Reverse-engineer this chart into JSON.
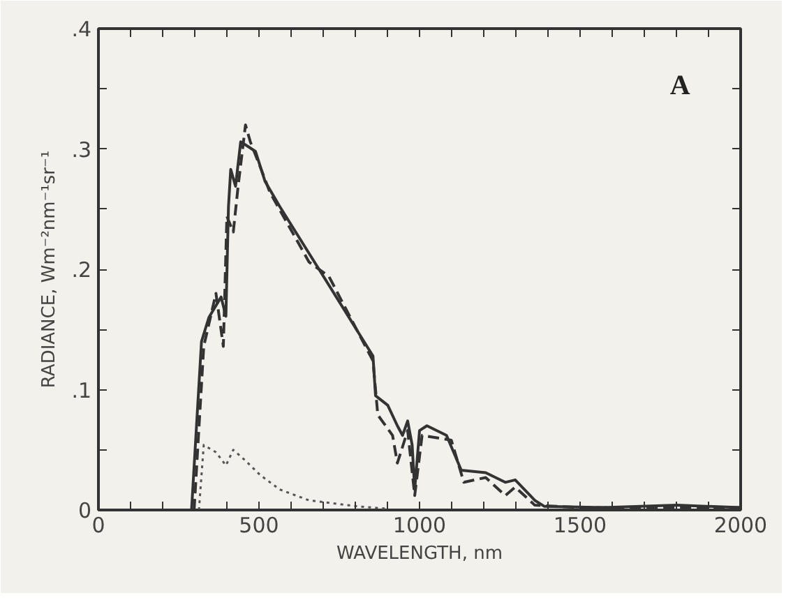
{
  "chart_data": {
    "type": "line",
    "xlabel": "WAVELENGTH, nm",
    "ylabel": "RADIANCE, Wm⁻²nm⁻¹sr⁻¹",
    "annotations": [
      "A"
    ],
    "xlim": [
      0,
      2000
    ],
    "ylim": [
      0,
      0.4
    ],
    "xticks": [
      0,
      {
        "value": 100,
        "label": null
      },
      {
        "value": 200,
        "label": null
      },
      {
        "value": 300,
        "label": null
      },
      {
        "value": 400,
        "label": null
      },
      500,
      {
        "value": 600,
        "label": null
      },
      {
        "value": 700,
        "label": null
      },
      {
        "value": 800,
        "label": null
      },
      {
        "value": 900,
        "label": null
      },
      1000,
      {
        "value": 1100,
        "label": null
      },
      {
        "value": 1200,
        "label": null
      },
      {
        "value": 1300,
        "label": null
      },
      {
        "value": 1400,
        "label": null
      },
      1500,
      {
        "value": 1600,
        "label": null
      },
      {
        "value": 1700,
        "label": null
      },
      {
        "value": 1800,
        "label": null
      },
      {
        "value": 1900,
        "label": null
      },
      2000
    ],
    "yticks": [
      0,
      {
        "value": 0.05,
        "label": null
      },
      {
        "value": 0.1,
        "label": ".1"
      },
      {
        "value": 0.15,
        "label": null
      },
      {
        "value": 0.2,
        "label": ".2"
      },
      {
        "value": 0.25,
        "label": null
      },
      {
        "value": 0.3,
        "label": ".3"
      },
      {
        "value": 0.35,
        "label": null
      },
      {
        "value": 0.4,
        "label": ".4"
      }
    ],
    "grid": false,
    "series": [
      {
        "color": "#333333",
        "line_style": "solid",
        "x": [
          290,
          321,
          344,
          382,
          397,
          405,
          412,
          427,
          443,
          466,
          489,
          519,
          565,
          687,
          855,
          863,
          901,
          931,
          947,
          963,
          977,
          985,
          1000,
          1023,
          1084,
          1130,
          1206,
          1267,
          1298,
          1359,
          1389,
          1573,
          1802,
          2000
        ],
        "values": [
          0,
          0.14,
          0.16,
          0.177,
          0.161,
          0.252,
          0.283,
          0.269,
          0.306,
          0.302,
          0.298,
          0.273,
          0.252,
          0.2,
          0.128,
          0.095,
          0.087,
          0.07,
          0.062,
          0.074,
          0.054,
          0.017,
          0.066,
          0.07,
          0.062,
          0.033,
          0.031,
          0.023,
          0.025,
          0.008,
          0.003,
          0.002,
          0.004,
          0.002
        ]
      },
      {
        "color": "#333333",
        "line_style": "dashed",
        "x": [
          298,
          328,
          366,
          389,
          400,
          420,
          435,
          458,
          473,
          504,
          534,
          656,
          718,
          855,
          870,
          916,
          931,
          963,
          985,
          1008,
          1099,
          1138,
          1206,
          1267,
          1298,
          1359,
          1500,
          2000
        ],
        "values": [
          0,
          0.136,
          0.18,
          0.136,
          0.244,
          0.231,
          0.269,
          0.32,
          0.306,
          0.285,
          0.264,
          0.206,
          0.194,
          0.124,
          0.079,
          0.062,
          0.039,
          0.066,
          0.012,
          0.062,
          0.058,
          0.023,
          0.027,
          0.012,
          0.019,
          0.004,
          0.002,
          0.002
        ]
      },
      {
        "color": "#555555",
        "line_style": "dotted",
        "x": [
          313,
          328,
          366,
          397,
          420,
          458,
          504,
          565,
          656,
          809,
          901
        ],
        "values": [
          0,
          0.054,
          0.048,
          0.037,
          0.05,
          0.041,
          0.029,
          0.017,
          0.008,
          0.003,
          0.001
        ]
      }
    ]
  }
}
